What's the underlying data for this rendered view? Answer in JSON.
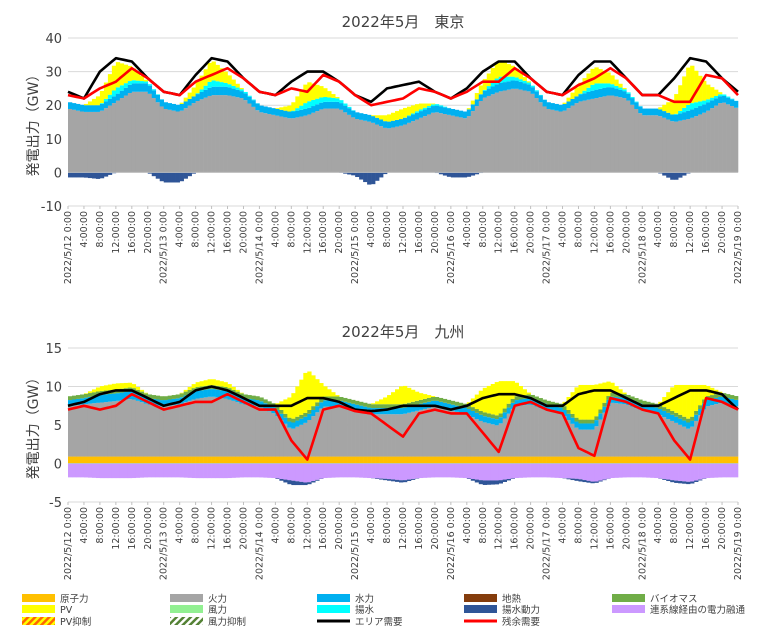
{
  "chart_data": [
    {
      "type": "area",
      "title": "2022年5月　東京",
      "ylabel": "発電出力（GW）",
      "ylim": [
        -10,
        40
      ],
      "yticks": [
        -10,
        0,
        10,
        20,
        30,
        40
      ],
      "x_tick_labels": [
        "2022/5/12 0:00",
        "4:00:00",
        "8:00:00",
        "12:00:00",
        "16:00:00",
        "20:00:00",
        "2022/5/13 0:00",
        "4:00:00",
        "8:00:00",
        "12:00:00",
        "16:00:00",
        "20:00:00",
        "2022/5/14 0:00",
        "4:00:00",
        "8:00:00",
        "12:00:00",
        "16:00:00",
        "20:00:00",
        "2022/5/15 0:00",
        "4:00:00",
        "8:00:00",
        "12:00:00",
        "16:00:00",
        "20:00:00",
        "2022/5/16 0:00",
        "4:00:00",
        "8:00:00",
        "12:00:00",
        "16:00:00",
        "20:00:00",
        "2022/5/17 0:00",
        "4:00:00",
        "8:00:00",
        "12:00:00",
        "16:00:00",
        "20:00:00",
        "2022/5/18 0:00",
        "4:00:00",
        "8:00:00",
        "12:00:00",
        "16:00:00",
        "20:00:00",
        "2022/5/19 0:00"
      ],
      "x_hours": [
        0,
        4,
        8,
        12,
        16,
        20,
        24,
        28,
        32,
        36,
        40,
        44,
        48,
        52,
        56,
        60,
        64,
        68,
        72,
        76,
        80,
        84,
        88,
        92,
        96,
        100,
        104,
        108,
        112,
        116,
        120,
        124,
        128,
        132,
        136,
        140,
        144,
        148,
        152,
        156,
        160,
        164,
        168
      ],
      "series": [
        {
          "name": "火力",
          "values": [
            19,
            18,
            18,
            21,
            24,
            24,
            19,
            18,
            21,
            23,
            23,
            22,
            18,
            17,
            16,
            17,
            19,
            19,
            16,
            15,
            13,
            14,
            16,
            18,
            17,
            16,
            22,
            24,
            25,
            24,
            19,
            18,
            21,
            22,
            23,
            22,
            17,
            17,
            15,
            16,
            18,
            21,
            19
          ]
        },
        {
          "name": "水力",
          "values": [
            2,
            2,
            2,
            2,
            2.5,
            2.5,
            2,
            2,
            2,
            2.5,
            2.5,
            2,
            2,
            2,
            2,
            2,
            2,
            2,
            2,
            2,
            2,
            2,
            2,
            2,
            2,
            2,
            2,
            2.5,
            2.5,
            2,
            2,
            2,
            2,
            2.5,
            2.5,
            2,
            2,
            2,
            2,
            2.5,
            2.5,
            2,
            2
          ]
        },
        {
          "name": "揚水",
          "values": [
            0,
            0,
            0,
            2,
            1,
            0.5,
            0,
            0,
            0,
            2,
            1,
            0.5,
            0,
            0,
            0,
            2,
            1.5,
            1,
            0,
            0,
            0,
            0,
            0.5,
            0.5,
            0,
            0,
            0,
            2,
            1,
            0.5,
            0,
            0,
            0,
            2,
            1,
            0.5,
            0,
            0,
            0,
            2,
            1,
            0.5,
            0
          ]
        },
        {
          "name": "PV",
          "values": [
            0,
            0,
            3,
            8,
            4,
            0,
            0,
            0,
            3,
            6,
            3,
            0,
            0,
            0,
            2,
            6,
            3,
            0,
            0,
            0,
            2,
            3,
            2,
            0,
            0,
            0,
            3,
            5,
            3,
            0,
            0,
            0,
            3,
            5,
            3,
            0,
            0,
            0,
            5,
            12,
            5,
            0,
            0
          ]
        },
        {
          "name": "揚水動力",
          "values": [
            -1.5,
            -1.5,
            -2,
            0,
            0,
            0,
            -3,
            -3,
            0,
            0,
            0,
            0,
            0,
            0,
            0,
            0,
            0,
            0,
            -1,
            -4,
            0,
            0,
            0,
            0,
            -1.5,
            -1.5,
            0,
            0,
            0,
            0,
            0,
            0,
            0,
            0,
            0,
            0,
            0,
            0,
            -2.5,
            0,
            0,
            0,
            0
          ]
        },
        {
          "name": "エリア需要",
          "values": [
            24,
            22,
            30,
            34,
            33,
            28,
            24,
            23,
            29,
            34,
            33,
            28,
            24,
            23,
            27,
            30,
            30,
            27,
            23,
            21,
            25,
            26,
            27,
            24,
            22,
            25,
            30,
            33,
            33,
            28,
            24,
            23,
            29,
            33,
            33,
            28,
            23,
            23,
            28,
            34,
            33,
            28,
            24
          ]
        },
        {
          "name": "残余需要",
          "values": [
            23,
            22,
            25,
            27,
            31,
            28,
            24,
            23,
            27,
            29,
            31,
            28,
            24,
            23,
            25,
            24,
            29,
            27,
            23,
            20,
            21,
            22,
            25,
            24,
            22,
            24,
            27,
            27,
            31,
            28,
            24,
            23,
            26,
            28,
            31,
            28,
            23,
            23,
            21,
            21,
            29,
            28,
            23
          ]
        }
      ]
    },
    {
      "type": "area",
      "title": "2022年5月　九州",
      "ylabel": "発電出力（GW）",
      "ylim": [
        -5,
        15
      ],
      "yticks": [
        -5,
        0,
        5,
        10,
        15
      ],
      "x_tick_labels": [
        "2022/5/12 0:00",
        "4:00:00",
        "8:00:00",
        "12:00:00",
        "16:00:00",
        "20:00:00",
        "2022/5/13 0:00",
        "4:00:00",
        "8:00:00",
        "12:00:00",
        "16:00:00",
        "20:00:00",
        "2022/5/14 0:00",
        "4:00:00",
        "8:00:00",
        "12:00:00",
        "16:00:00",
        "20:00:00",
        "2022/5/15 0:00",
        "4:00:00",
        "8:00:00",
        "12:00:00",
        "16:00:00",
        "20:00:00",
        "2022/5/16 0:00",
        "4:00:00",
        "8:00:00",
        "12:00:00",
        "16:00:00",
        "20:00:00",
        "2022/5/17 0:00",
        "4:00:00",
        "8:00:00",
        "12:00:00",
        "16:00:00",
        "20:00:00",
        "2022/5/18 0:00",
        "4:00:00",
        "8:00:00",
        "12:00:00",
        "16:00:00",
        "20:00:00",
        "2022/5/19 0:00"
      ],
      "x_hours": [
        0,
        4,
        8,
        12,
        16,
        20,
        24,
        28,
        32,
        36,
        40,
        44,
        48,
        52,
        56,
        60,
        64,
        68,
        72,
        76,
        80,
        84,
        88,
        92,
        96,
        100,
        104,
        108,
        112,
        116,
        120,
        124,
        128,
        132,
        136,
        140,
        144,
        148,
        152,
        156,
        160,
        164,
        168
      ],
      "series": [
        {
          "name": "原子力",
          "values": [
            0.9,
            0.9,
            0.9,
            0.9,
            0.9,
            0.9,
            0.9,
            0.9,
            0.9,
            0.9,
            0.9,
            0.9,
            0.9,
            0.9,
            0.9,
            0.9,
            0.9,
            0.9,
            0.9,
            0.9,
            0.9,
            0.9,
            0.9,
            0.9,
            0.9,
            0.9,
            0.9,
            0.9,
            0.9,
            0.9,
            0.9,
            0.9,
            0.9,
            0.9,
            0.9,
            0.9,
            0.9,
            0.9,
            0.9,
            0.9,
            0.9,
            0.9,
            0.9
          ]
        },
        {
          "name": "火力",
          "values": [
            6.5,
            6.8,
            7,
            7.2,
            7.5,
            6.8,
            6.5,
            6.8,
            7.5,
            7.8,
            7.5,
            6.8,
            6.5,
            5.5,
            3.5,
            4.5,
            6.5,
            6.5,
            6,
            5.5,
            5.5,
            5.5,
            6,
            6.5,
            6,
            5.5,
            4.5,
            4,
            6.5,
            6.8,
            6,
            5.5,
            3.5,
            3.5,
            7,
            6.8,
            6,
            5.5,
            4.5,
            3.5,
            6.5,
            7,
            6.5
          ]
        },
        {
          "name": "水力",
          "values": [
            0.8,
            0.8,
            1,
            1,
            1,
            0.8,
            0.8,
            0.8,
            1,
            1,
            1,
            0.8,
            0.8,
            0.8,
            0.8,
            0.8,
            0.8,
            0.8,
            0.8,
            0.8,
            0.8,
            0.8,
            0.8,
            0.8,
            0.8,
            0.8,
            0.8,
            0.8,
            0.8,
            0.8,
            0.8,
            0.8,
            0.8,
            0.8,
            0.8,
            0.8,
            0.8,
            0.8,
            0.8,
            0.8,
            0.8,
            0.8,
            0.8
          ]
        },
        {
          "name": "バイオマス",
          "values": [
            0.5,
            0.5,
            0.5,
            0.5,
            0.5,
            0.5,
            0.5,
            0.5,
            0.5,
            0.5,
            0.5,
            0.5,
            0.5,
            0.5,
            0.5,
            0.5,
            0.5,
            0.5,
            0.5,
            0.5,
            0.5,
            0.5,
            0.5,
            0.5,
            0.5,
            0.5,
            0.5,
            0.5,
            0.5,
            0.5,
            0.5,
            0.5,
            0.5,
            0.5,
            0.5,
            0.5,
            0.5,
            0.5,
            0.5,
            0.5,
            0.5,
            0.5,
            0.5
          ]
        },
        {
          "name": "PV",
          "values": [
            0,
            0,
            0.6,
            0.8,
            0.6,
            0,
            0,
            0,
            0.6,
            0.8,
            0.6,
            0,
            0,
            0,
            3,
            5.5,
            1.5,
            0,
            0,
            0,
            1,
            2.5,
            1,
            0,
            0,
            0,
            3,
            4.5,
            2,
            0,
            0,
            0,
            4.5,
            4.5,
            1.5,
            0,
            0,
            0,
            3.5,
            4.5,
            1.5,
            0,
            0
          ]
        },
        {
          "name": "連系線経由の電力融通",
          "values": [
            -1.8,
            -1.8,
            -1.9,
            -1.9,
            -1.9,
            -1.8,
            -1.8,
            -1.8,
            -1.9,
            -1.9,
            -1.9,
            -1.8,
            -1.8,
            -1.9,
            -2.2,
            -2.5,
            -1.9,
            -1.8,
            -1.8,
            -1.9,
            -2,
            -2.2,
            -1.9,
            -1.8,
            -1.8,
            -1.9,
            -2.2,
            -2.2,
            -1.9,
            -1.8,
            -1.8,
            -1.9,
            -2,
            -2.4,
            -1.9,
            -1.8,
            -1.8,
            -1.9,
            -2.2,
            -2.4,
            -1.9,
            -1.8,
            -1.8
          ]
        },
        {
          "name": "揚水動力",
          "values": [
            0,
            0,
            0,
            0,
            0,
            0,
            0,
            0,
            0,
            0,
            0,
            0,
            0,
            0,
            -0.6,
            -0.3,
            0,
            0,
            0,
            0,
            -0.2,
            -0.3,
            0,
            0,
            0,
            0,
            -0.6,
            -0.5,
            0,
            0,
            0,
            0,
            -0.3,
            -0.2,
            0,
            0,
            0,
            0,
            -0.3,
            -0.3,
            0,
            0,
            0
          ]
        },
        {
          "name": "エリア需要",
          "values": [
            7.5,
            8,
            9,
            9.5,
            9.5,
            8.5,
            7.5,
            8,
            9.5,
            10,
            9.5,
            8.5,
            7.5,
            7.5,
            7.5,
            8.5,
            8.5,
            8,
            7,
            6.8,
            7,
            7.5,
            7.5,
            7.5,
            7,
            7.5,
            8.5,
            9,
            9,
            8.5,
            7.5,
            7.5,
            9,
            9.5,
            9.5,
            8.5,
            7.5,
            7.5,
            8.5,
            9.5,
            9.5,
            9,
            7
          ]
        },
        {
          "name": "残余需要",
          "values": [
            7,
            7.5,
            7,
            7.5,
            9,
            8,
            7,
            7.5,
            8,
            8,
            9,
            8,
            7,
            7,
            3,
            0.5,
            7,
            7.5,
            6.8,
            6.5,
            5,
            3.5,
            6.5,
            7,
            6.5,
            6.5,
            4,
            1.5,
            7.5,
            8,
            7,
            6.5,
            2,
            1,
            8.5,
            8,
            7,
            6.5,
            3,
            0.5,
            8.5,
            8,
            7
          ]
        }
      ]
    }
  ],
  "legend": {
    "items": [
      {
        "name": "原子力",
        "color": "#ffc000",
        "pattern": "solid"
      },
      {
        "name": "火力",
        "color": "#a5a5a5",
        "pattern": "solid"
      },
      {
        "name": "水力",
        "color": "#00b0f0",
        "pattern": "solid"
      },
      {
        "name": "地熱",
        "color": "#843c0c",
        "pattern": "solid"
      },
      {
        "name": "バイオマス",
        "color": "#70ad47",
        "pattern": "solid"
      },
      {
        "name": "PV",
        "color": "#ffff00",
        "pattern": "solid"
      },
      {
        "name": "風力",
        "color": "#92f092",
        "pattern": "solid"
      },
      {
        "name": "揚水",
        "color": "#00ffff",
        "pattern": "solid"
      },
      {
        "name": "揚水動力",
        "color": "#2f5597",
        "pattern": "solid"
      },
      {
        "name": "連系線経由の電力融通",
        "color": "#cc99ff",
        "pattern": "solid"
      },
      {
        "name": "PV抑制",
        "color": "#ff6600",
        "pattern": "stripe",
        "color2": "#ffff00"
      },
      {
        "name": "風力抑制",
        "color": "#548235",
        "pattern": "stripe",
        "color2": "#ffffff"
      },
      {
        "name": "エリア需要",
        "color": "#000000",
        "pattern": "line"
      },
      {
        "name": "残余需要",
        "color": "#ff0000",
        "pattern": "line"
      }
    ]
  },
  "colors": {
    "原子力": "#ffc000",
    "火力": "#a5a5a5",
    "水力": "#00b0f0",
    "地熱": "#843c0c",
    "バイオマス": "#70ad47",
    "PV": "#ffff00",
    "風力": "#92f092",
    "揚水": "#00ffff",
    "揚水動力": "#2f5597",
    "連系線経由の電力融通": "#cc99ff",
    "エリア需要": "#000000",
    "残余需要": "#ff0000",
    "grid": "#d9d9d9",
    "axis": "#404040"
  }
}
